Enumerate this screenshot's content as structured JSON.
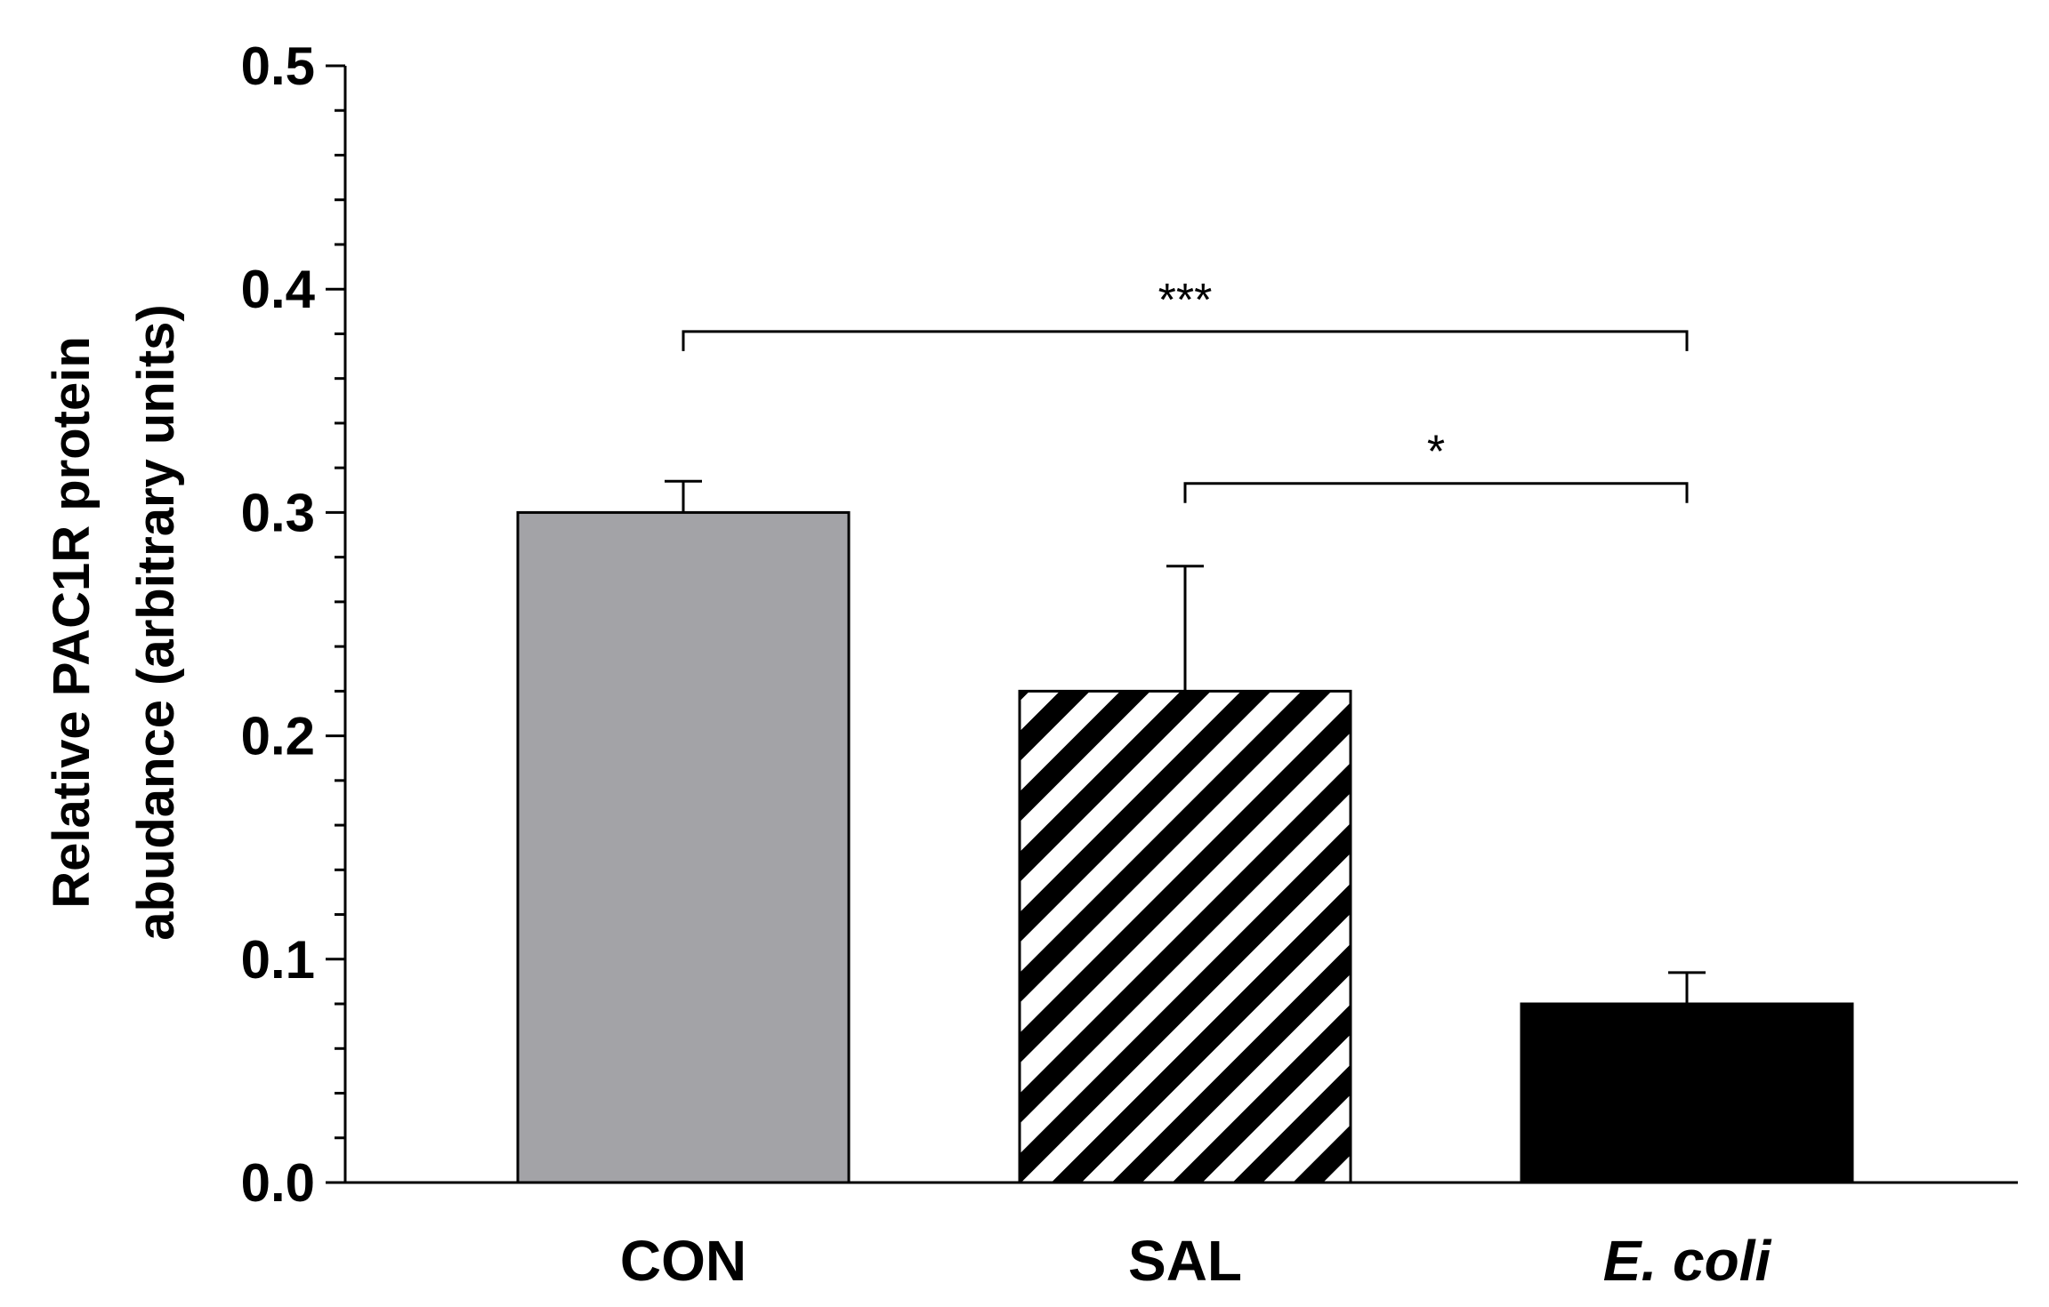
{
  "chart_data": {
    "type": "bar",
    "categories": [
      "CON",
      "SAL",
      "E. coli"
    ],
    "category_italic": [
      false,
      false,
      true
    ],
    "values": [
      0.3,
      0.22,
      0.08
    ],
    "errors": [
      0.014,
      0.056,
      0.014
    ],
    "fills": [
      "#a3a3a7",
      "stripes",
      "#000000"
    ],
    "ylabel_lines": [
      "Relative PAC1R protein",
      "abudance (arbitrary units)"
    ],
    "xlabel": "",
    "ylim": [
      0,
      0.5
    ],
    "yticks": [
      "0.0",
      "0.1",
      "0.2",
      "0.3",
      "0.4",
      "0.5"
    ],
    "grid": false,
    "significance": [
      {
        "from": 0,
        "to": 2,
        "y": 0.381,
        "label": "***"
      },
      {
        "from": 1,
        "to": 2,
        "y": 0.313,
        "label": "*"
      }
    ]
  }
}
